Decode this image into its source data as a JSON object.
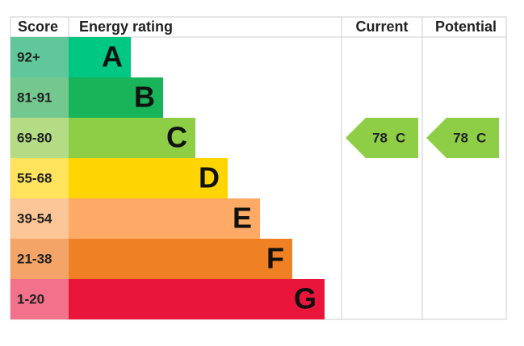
{
  "header": {
    "score": "Score",
    "rating": "Energy rating",
    "current": "Current",
    "potential": "Potential"
  },
  "bands": [
    {
      "score": "92+",
      "letter": "A"
    },
    {
      "score": "81-91",
      "letter": "B"
    },
    {
      "score": "69-80",
      "letter": "C"
    },
    {
      "score": "55-68",
      "letter": "D"
    },
    {
      "score": "39-54",
      "letter": "E"
    },
    {
      "score": "21-38",
      "letter": "F"
    },
    {
      "score": "1-20",
      "letter": "G"
    }
  ],
  "current": {
    "score": 78,
    "letter": "C"
  },
  "potential": {
    "score": 78,
    "letter": "C"
  }
}
